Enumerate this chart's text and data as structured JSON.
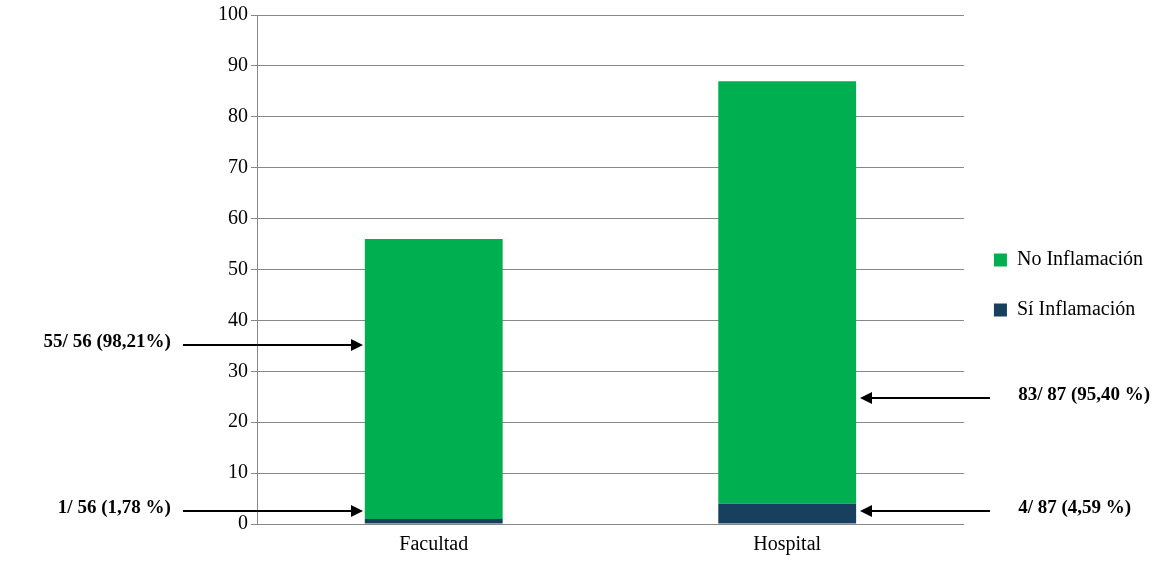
{
  "chart_data": {
    "type": "bar",
    "stacked": true,
    "categories": [
      "Facultad",
      "Hospital"
    ],
    "series": [
      {
        "name": "Sí Inflamación",
        "color": "#17405e",
        "values": [
          1,
          4
        ]
      },
      {
        "name": "No Inflamación",
        "color": "#00b050",
        "values": [
          55,
          83
        ]
      }
    ],
    "ylim": [
      0,
      100
    ],
    "yticks": [
      0,
      10,
      20,
      30,
      40,
      50,
      60,
      70,
      80,
      90,
      100
    ],
    "grid": "y",
    "legend": "right",
    "annotations": [
      "55/ 56 (98,21%)",
      "1/ 56 (1,78 %)",
      "83/ 87 (95,40 %)",
      "4/ 87 (4,59 %)"
    ]
  }
}
